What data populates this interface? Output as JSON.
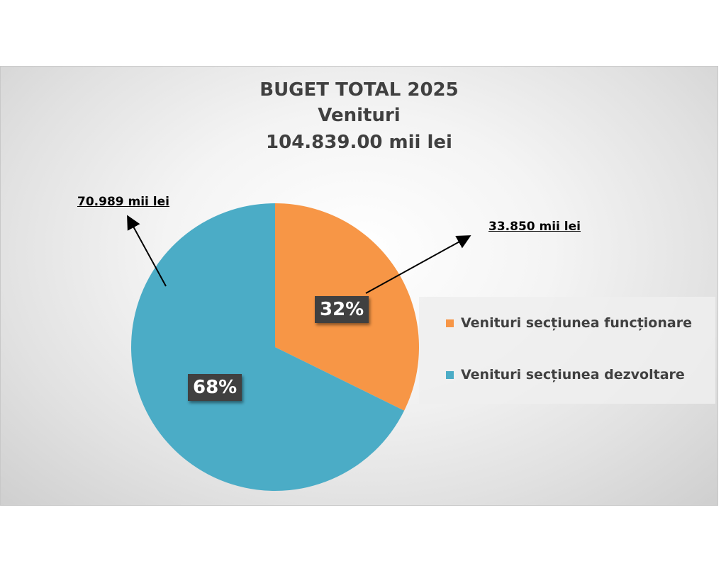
{
  "chart_data": {
    "type": "pie",
    "title": "BUGET TOTAL 2025",
    "subtitle": "Venituri",
    "total_label": "104.839.00 mii lei",
    "slices": [
      {
        "name": "Venituri secțiunea funcționare",
        "value": 33850,
        "percent": 32,
        "percent_label": "32%",
        "callout": "33.850 mii lei",
        "color": "#F79646"
      },
      {
        "name": "Venituri secțiunea dezvoltare",
        "value": 70989,
        "percent": 68,
        "percent_label": "68%",
        "callout": "70.989 mii lei",
        "color": "#4BACC6"
      }
    ],
    "legend_position": "right"
  }
}
